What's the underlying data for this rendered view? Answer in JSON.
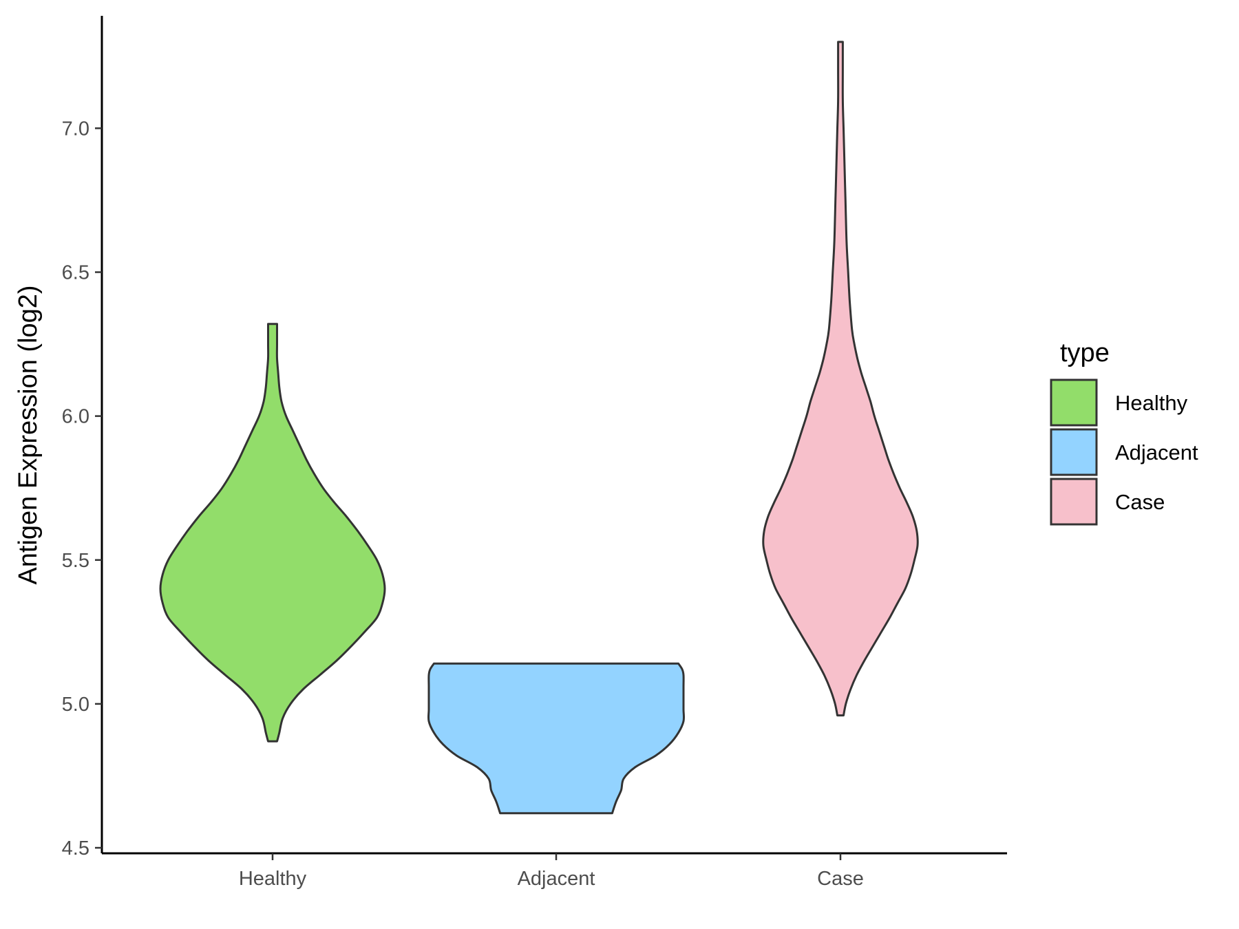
{
  "chart_data": {
    "type": "violin",
    "title": "",
    "xlabel": "",
    "ylabel": "Antigen Expression (log2)",
    "ylim": [
      4.5,
      7.35
    ],
    "yticks": [
      4.5,
      5.0,
      5.5,
      6.0,
      6.5,
      7.0
    ],
    "ytick_labels": [
      "4.5",
      "5.0",
      "5.5",
      "6.0",
      "6.5",
      "7.0"
    ],
    "categories": [
      "Healthy",
      "Adjacent",
      "Case"
    ],
    "grid": false,
    "legend": {
      "title": "type",
      "position": "right",
      "entries": [
        "Healthy",
        "Adjacent",
        "Case"
      ]
    },
    "series": [
      {
        "name": "Healthy",
        "color": "#92dd6a",
        "min": 4.87,
        "max": 6.32,
        "density": [
          [
            4.87,
            0.04
          ],
          [
            4.9,
            0.06
          ],
          [
            4.95,
            0.09
          ],
          [
            5.0,
            0.16
          ],
          [
            5.05,
            0.27
          ],
          [
            5.1,
            0.42
          ],
          [
            5.15,
            0.57
          ],
          [
            5.2,
            0.7
          ],
          [
            5.25,
            0.82
          ],
          [
            5.3,
            0.93
          ],
          [
            5.35,
            0.98
          ],
          [
            5.4,
            1.0
          ],
          [
            5.45,
            0.98
          ],
          [
            5.5,
            0.93
          ],
          [
            5.55,
            0.85
          ],
          [
            5.6,
            0.76
          ],
          [
            5.65,
            0.66
          ],
          [
            5.7,
            0.55
          ],
          [
            5.75,
            0.45
          ],
          [
            5.8,
            0.37
          ],
          [
            5.85,
            0.3
          ],
          [
            5.9,
            0.24
          ],
          [
            5.95,
            0.18
          ],
          [
            6.0,
            0.12
          ],
          [
            6.05,
            0.08
          ],
          [
            6.1,
            0.06
          ],
          [
            6.15,
            0.05
          ],
          [
            6.2,
            0.04
          ],
          [
            6.25,
            0.04
          ],
          [
            6.32,
            0.04
          ]
        ]
      },
      {
        "name": "Adjacent",
        "color": "#93d3ff",
        "min": 4.62,
        "max": 5.14,
        "density": [
          [
            4.62,
            0.44
          ],
          [
            4.66,
            0.47
          ],
          [
            4.7,
            0.51
          ],
          [
            4.74,
            0.53
          ],
          [
            4.78,
            0.62
          ],
          [
            4.82,
            0.78
          ],
          [
            4.86,
            0.89
          ],
          [
            4.9,
            0.96
          ],
          [
            4.94,
            1.0
          ],
          [
            4.98,
            1.0
          ],
          [
            5.02,
            1.0
          ],
          [
            5.06,
            1.0
          ],
          [
            5.1,
            1.0
          ],
          [
            5.12,
            0.99
          ],
          [
            5.14,
            0.96
          ]
        ]
      },
      {
        "name": "Case",
        "color": "#f7c0cb",
        "min": 4.96,
        "max": 7.3,
        "density": [
          [
            4.96,
            0.04
          ],
          [
            5.0,
            0.07
          ],
          [
            5.05,
            0.13
          ],
          [
            5.1,
            0.21
          ],
          [
            5.15,
            0.31
          ],
          [
            5.2,
            0.42
          ],
          [
            5.25,
            0.53
          ],
          [
            5.3,
            0.64
          ],
          [
            5.35,
            0.74
          ],
          [
            5.4,
            0.84
          ],
          [
            5.45,
            0.91
          ],
          [
            5.5,
            0.96
          ],
          [
            5.55,
            1.0
          ],
          [
            5.6,
            0.99
          ],
          [
            5.65,
            0.94
          ],
          [
            5.7,
            0.86
          ],
          [
            5.75,
            0.77
          ],
          [
            5.8,
            0.69
          ],
          [
            5.85,
            0.62
          ],
          [
            5.9,
            0.56
          ],
          [
            5.95,
            0.5
          ],
          [
            6.0,
            0.44
          ],
          [
            6.05,
            0.39
          ],
          [
            6.1,
            0.33
          ],
          [
            6.15,
            0.27
          ],
          [
            6.2,
            0.22
          ],
          [
            6.25,
            0.18
          ],
          [
            6.3,
            0.15
          ],
          [
            6.4,
            0.12
          ],
          [
            6.5,
            0.1
          ],
          [
            6.6,
            0.08
          ],
          [
            6.7,
            0.07
          ],
          [
            6.8,
            0.06
          ],
          [
            6.9,
            0.05
          ],
          [
            7.0,
            0.04
          ],
          [
            7.1,
            0.03
          ],
          [
            7.2,
            0.03
          ],
          [
            7.3,
            0.03
          ]
        ]
      }
    ]
  }
}
